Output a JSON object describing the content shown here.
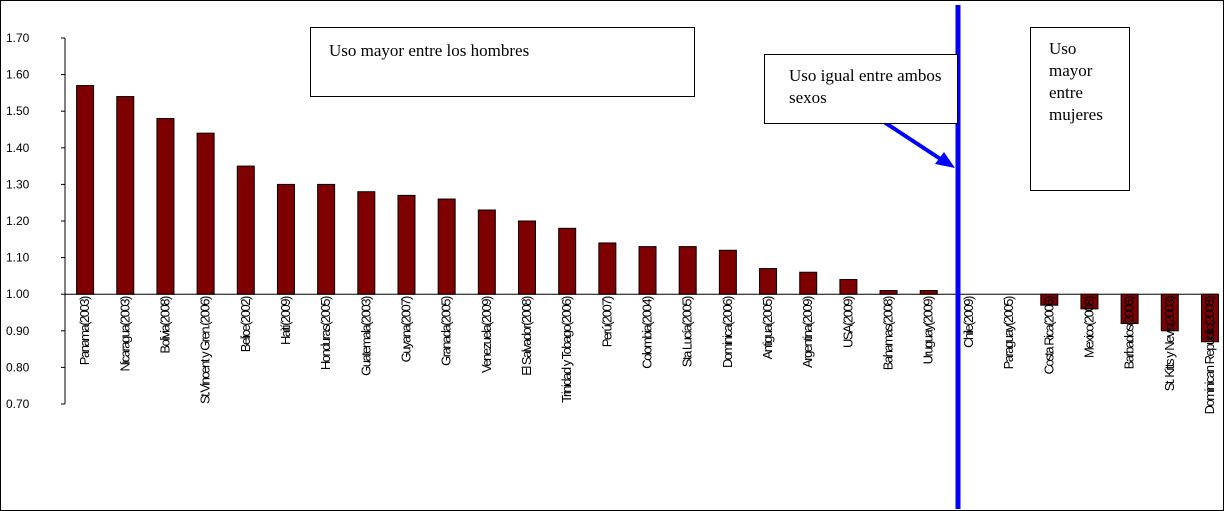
{
  "chart_data": {
    "type": "bar",
    "title": "",
    "xlabel": "",
    "ylabel": "",
    "ylim": [
      0.7,
      1.7
    ],
    "y_ticks": [
      "0.70",
      "0.80",
      "0.90",
      "1.00",
      "1.10",
      "1.20",
      "1.30",
      "1.40",
      "1.50",
      "1.60",
      "1.70"
    ],
    "baseline": 1.0,
    "bar_color": "#7f0000",
    "divider_color": "#0000ff",
    "grid": false,
    "legend": "none",
    "categories": [
      "Panama(2003)",
      "Nicaragua(2003)",
      "Bolivia(2008)",
      "St.Vincent y Gren.(2006)",
      "Belice(2002)",
      "Haití(2009)",
      "Honduras(2005)",
      "Guatemala(2003)",
      "Guyana(2007)",
      "Granada(2005)",
      "Venezuela(2009)",
      "El Salvador(2008)",
      "Trinidad y Tobago(2006)",
      "Perú(2007)",
      "Colombia(2004)",
      "Sta Lucía(2005)",
      "Dominica(2006)",
      "Antigua(2005)",
      "Argentina(2009)",
      "USA(2009)",
      "Bahamas(2008)",
      "Uruguay(2009)",
      "Chile(2009)",
      "Paraguay(2005)",
      "Costa Rica(2006)",
      "Mexico(2008)",
      "Barbados(2006)",
      "St. Kitts y Nevis(2003)",
      "Dominican Republic(2008)"
    ],
    "values": [
      1.57,
      1.54,
      1.48,
      1.44,
      1.35,
      1.3,
      1.3,
      1.28,
      1.27,
      1.26,
      1.23,
      1.2,
      1.18,
      1.14,
      1.13,
      1.13,
      1.12,
      1.07,
      1.06,
      1.04,
      1.01,
      1.01,
      1.0,
      1.0,
      0.97,
      0.96,
      0.92,
      0.9,
      0.87
    ],
    "annotations": {
      "men": "Uso mayor entre los hombres",
      "equal": "Uso igual entre ambos sexos",
      "women": "Uso mayor entre mujeres"
    }
  }
}
